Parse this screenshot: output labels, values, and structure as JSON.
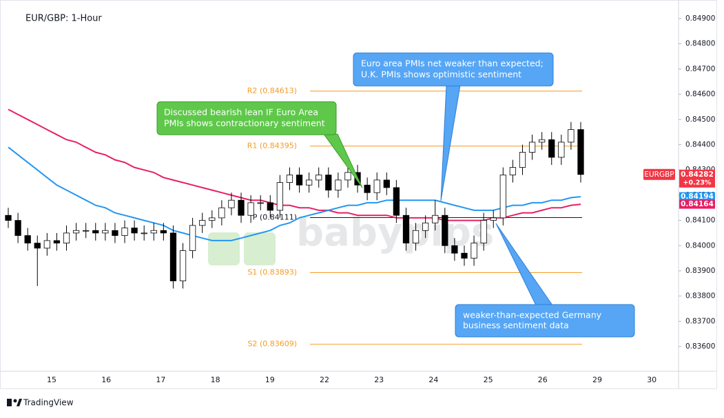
{
  "chart_data": {
    "type": "candlestick",
    "title": "EUR/GBP: 1-Hour",
    "xlabels": [
      "15",
      "16",
      "17",
      "18",
      "19",
      "22",
      "23",
      "24",
      "25",
      "26",
      "29",
      "30"
    ],
    "ylim": [
      0.83502,
      0.8496
    ],
    "yticks": [
      {
        "value": 0.849,
        "label": "0.84900"
      },
      {
        "value": 0.848,
        "label": "0.84800"
      },
      {
        "value": 0.847,
        "label": "0.84700"
      },
      {
        "value": 0.846,
        "label": "0.84600"
      },
      {
        "value": 0.845,
        "label": "0.84500"
      },
      {
        "value": 0.844,
        "label": "0.84400"
      },
      {
        "value": 0.843,
        "label": "0.84300"
      },
      {
        "value": 0.842,
        "label": "0.84200"
      },
      {
        "value": 0.841,
        "label": "0.84100"
      },
      {
        "value": 0.84,
        "label": "0.84000"
      },
      {
        "value": 0.839,
        "label": "0.83900"
      },
      {
        "value": 0.838,
        "label": "0.83800"
      },
      {
        "value": 0.837,
        "label": "0.83700"
      },
      {
        "value": 0.836,
        "label": "0.83600"
      }
    ],
    "candles": {
      "up_color": "#ffffff",
      "down_color": "#000000",
      "open": [
        0.8412,
        0.841,
        0.8404,
        0.8401,
        0.8399,
        0.8402,
        0.8401,
        0.8405,
        0.8406,
        0.8406,
        0.8405,
        0.8406,
        0.8404,
        0.8407,
        0.8405,
        0.8405,
        0.8406,
        0.8405,
        0.8386,
        0.8398,
        0.8408,
        0.841,
        0.8411,
        0.8415,
        0.8418,
        0.8412,
        0.8417,
        0.8417,
        0.8414,
        0.8425,
        0.8428,
        0.8424,
        0.8426,
        0.8428,
        0.8422,
        0.8426,
        0.8429,
        0.8424,
        0.8421,
        0.8426,
        0.8423,
        0.8412,
        0.8401,
        0.8406,
        0.8409,
        0.8412,
        0.84,
        0.8397,
        0.8395,
        0.8401,
        0.841,
        0.8411,
        0.8428,
        0.8431,
        0.8437,
        0.8441,
        0.8442,
        0.8435,
        0.8441,
        0.8446
      ],
      "high": [
        0.8415,
        0.8413,
        0.8407,
        0.8404,
        0.8405,
        0.8405,
        0.8408,
        0.8409,
        0.8409,
        0.8409,
        0.8409,
        0.8409,
        0.841,
        0.841,
        0.8408,
        0.8409,
        0.8409,
        0.8408,
        0.8401,
        0.8411,
        0.8413,
        0.8414,
        0.8418,
        0.8421,
        0.8421,
        0.842,
        0.842,
        0.842,
        0.8428,
        0.8431,
        0.8431,
        0.8429,
        0.8431,
        0.8431,
        0.8429,
        0.8432,
        0.8432,
        0.8427,
        0.8429,
        0.8429,
        0.8426,
        0.8415,
        0.8409,
        0.8412,
        0.8418,
        0.8415,
        0.8403,
        0.84,
        0.8404,
        0.8413,
        0.8414,
        0.8431,
        0.8434,
        0.844,
        0.8444,
        0.8445,
        0.8445,
        0.8444,
        0.8449,
        0.8449
      ],
      "low": [
        0.8407,
        0.8401,
        0.8398,
        0.8384,
        0.8396,
        0.8398,
        0.8398,
        0.8402,
        0.8403,
        0.8402,
        0.8402,
        0.8401,
        0.8401,
        0.8402,
        0.8402,
        0.8402,
        0.8402,
        0.8383,
        0.8383,
        0.8395,
        0.8405,
        0.8407,
        0.8408,
        0.8412,
        0.8409,
        0.8409,
        0.8414,
        0.8411,
        0.8411,
        0.8422,
        0.8421,
        0.8421,
        0.8423,
        0.8419,
        0.8419,
        0.8423,
        0.8421,
        0.8418,
        0.8418,
        0.842,
        0.8409,
        0.8398,
        0.8398,
        0.8403,
        0.8406,
        0.8397,
        0.8394,
        0.8392,
        0.8392,
        0.8398,
        0.8407,
        0.8408,
        0.8425,
        0.8428,
        0.8434,
        0.8438,
        0.8432,
        0.8432,
        0.8438,
        0.8425
      ],
      "close": [
        0.841,
        0.8404,
        0.8401,
        0.8399,
        0.8402,
        0.8401,
        0.8405,
        0.8406,
        0.8406,
        0.8405,
        0.8406,
        0.8404,
        0.8407,
        0.8405,
        0.8405,
        0.8406,
        0.8405,
        0.8386,
        0.8398,
        0.8408,
        0.841,
        0.8411,
        0.8415,
        0.8418,
        0.8412,
        0.8417,
        0.8417,
        0.8414,
        0.8425,
        0.8428,
        0.8424,
        0.8426,
        0.8428,
        0.8422,
        0.8426,
        0.8429,
        0.8424,
        0.8421,
        0.8426,
        0.8423,
        0.8412,
        0.8401,
        0.8406,
        0.8409,
        0.8412,
        0.84,
        0.8397,
        0.8395,
        0.8401,
        0.841,
        0.8411,
        0.8428,
        0.8431,
        0.8437,
        0.8441,
        0.8442,
        0.8435,
        0.8441,
        0.8446,
        0.84282
      ]
    },
    "series": [
      {
        "color": "#e91e63",
        "values": [
          0.8454,
          0.8452,
          0.845,
          0.8448,
          0.8446,
          0.8444,
          0.8442,
          0.8441,
          0.8439,
          0.8437,
          0.8436,
          0.8434,
          0.8433,
          0.8431,
          0.843,
          0.8429,
          0.8427,
          0.8426,
          0.8425,
          0.8424,
          0.8423,
          0.8422,
          0.8421,
          0.842,
          0.8419,
          0.8418,
          0.8418,
          0.8417,
          0.8416,
          0.8416,
          0.8415,
          0.8415,
          0.8414,
          0.8414,
          0.8413,
          0.8413,
          0.8412,
          0.8412,
          0.8412,
          0.8412,
          0.8411,
          0.8411,
          0.8411,
          0.8411,
          0.8411,
          0.841,
          0.841,
          0.841,
          0.841,
          0.841,
          0.8411,
          0.8411,
          0.8412,
          0.8413,
          0.8413,
          0.8414,
          0.8415,
          0.8415,
          0.8416,
          0.84164
        ]
      },
      {
        "color": "#2196f3",
        "values": [
          0.8439,
          0.8436,
          0.8433,
          0.843,
          0.8427,
          0.8424,
          0.8422,
          0.842,
          0.8418,
          0.8416,
          0.8415,
          0.8413,
          0.8412,
          0.8411,
          0.841,
          0.8409,
          0.8408,
          0.8406,
          0.8405,
          0.8404,
          0.8403,
          0.8402,
          0.8402,
          0.8402,
          0.8403,
          0.8404,
          0.8405,
          0.8406,
          0.8408,
          0.8409,
          0.8411,
          0.8412,
          0.8413,
          0.8414,
          0.8415,
          0.8416,
          0.8416,
          0.8417,
          0.8417,
          0.8418,
          0.8418,
          0.8418,
          0.8418,
          0.8418,
          0.8418,
          0.8417,
          0.8416,
          0.8415,
          0.8414,
          0.8414,
          0.8414,
          0.8415,
          0.8416,
          0.8416,
          0.8417,
          0.8417,
          0.8418,
          0.8418,
          0.8419,
          0.84194
        ]
      }
    ],
    "pivots": [
      {
        "label": "R2 (0.84613)",
        "value": 0.84613,
        "color": "#f59b22"
      },
      {
        "label": "R1 (0.84395)",
        "value": 0.84395,
        "color": "#f59b22"
      },
      {
        "label": "P (0.84111)",
        "value": 0.84111,
        "color": "#131722"
      },
      {
        "label": "S1 (0.83893)",
        "value": 0.83893,
        "color": "#f59b22"
      },
      {
        "label": "S2 (0.83609)",
        "value": 0.83609,
        "color": "#f59b22"
      }
    ],
    "price_tags": [
      {
        "name": "EURGBP",
        "value": 0.84282,
        "change": "+0.23%",
        "color": "#f23645"
      },
      {
        "value": 0.84194,
        "color": "#2196f3"
      },
      {
        "value": 0.84164,
        "color": "#e91e63"
      }
    ],
    "annotations": [
      {
        "lines": [
          "Discussed bearish lean IF Euro Area",
          "PMIs shows contractionary sentiment"
        ]
      },
      {
        "lines": [
          "Euro area PMIs net weaker than expected;",
          "U.K. PMIs shows optimistic sentiment"
        ]
      },
      {
        "lines": [
          "weaker-than-expected Germany",
          "business sentiment data"
        ]
      }
    ],
    "watermark": "babypips",
    "brand": "TradingView"
  }
}
